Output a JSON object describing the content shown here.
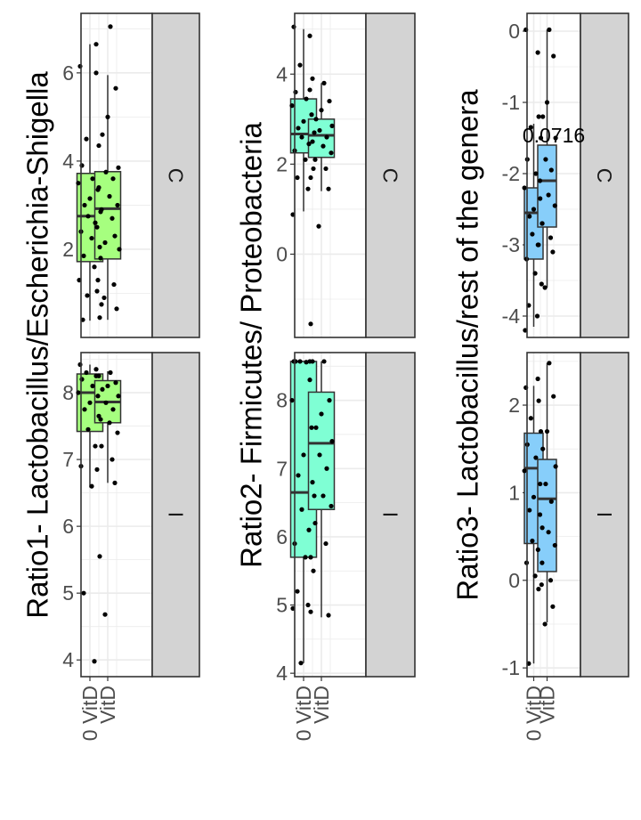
{
  "chart_data": {
    "type": "boxplot",
    "categories": [
      "0 VitD",
      "VitD"
    ],
    "facets": [
      "C",
      "I"
    ],
    "colors": {
      "panel_bg": "#ffffff",
      "grid": "#ebebeb",
      "strip": "#d3d3d3",
      "box_outline": "#333333",
      "point": "#000000"
    },
    "panels": [
      {
        "ylabel": "Ratio1- Lactobacillus/Escherichia-Shigella",
        "fill": "#a6ff7f",
        "facets": [
          {
            "facet": "C",
            "ylim": [
              0,
              7.35
            ],
            "yticks": [
              2,
              4,
              6
            ],
            "boxes": [
              {
                "q1": 1.72,
                "median": 2.75,
                "q3": 3.72,
                "lower": 0.38,
                "upper": 6.65
              },
              {
                "q1": 1.78,
                "median": 2.92,
                "q3": 3.76,
                "lower": 0.4,
                "upper": 5.95
              }
            ],
            "points": [
              [
                6.15,
                6.65,
                4.5,
                4.35,
                3.9,
                3.6,
                3.5,
                3.35,
                3.15,
                3.0,
                2.85,
                2.75,
                2.6,
                2.4,
                2.25,
                2.05,
                1.85,
                1.6,
                1.3,
                1.05,
                0.95,
                0.75,
                0.4
              ],
              [
                7.05,
                6.0,
                5.65,
                5.0,
                4.6,
                3.85,
                3.75,
                3.6,
                3.4,
                3.2,
                3.0,
                2.9,
                2.7,
                2.5,
                2.3,
                2.15,
                2.0,
                1.8,
                1.3,
                1.2,
                0.9,
                0.65,
                0.45
              ]
            ]
          },
          {
            "facet": "I",
            "ylim": [
              3.75,
              8.6
            ],
            "yticks": [
              4,
              5,
              6,
              7,
              8
            ],
            "boxes": [
              {
                "q1": 7.42,
                "median": 8.0,
                "q3": 8.28,
                "lower": 6.58,
                "upper": 8.42
              },
              {
                "q1": 7.55,
                "median": 7.86,
                "q3": 8.18,
                "lower": 6.65,
                "upper": 8.32
              }
            ],
            "points": [
              [
                8.42,
                8.35,
                8.3,
                8.25,
                8.2,
                8.1,
                8.0,
                7.95,
                7.85,
                7.75,
                7.6,
                7.45,
                7.2,
                6.9,
                6.6,
                5.55,
                5.0,
                3.98
              ],
              [
                8.3,
                8.25,
                8.15,
                8.1,
                8.05,
                7.95,
                7.85,
                7.75,
                7.65,
                7.55,
                7.4,
                7.2,
                7.0,
                6.85,
                6.65,
                4.68
              ]
            ]
          }
        ]
      },
      {
        "ylabel": "Ratio2- Firmicutes/ Proteobacteria",
        "fill": "#7fffd4",
        "facets": [
          {
            "facet": "C",
            "ylim": [
              -1.85,
              5.35
            ],
            "yticks": [
              0,
              2,
              4
            ],
            "boxes": [
              {
                "q1": 2.25,
                "median": 2.67,
                "q3": 3.45,
                "lower": 0.95,
                "upper": 5.0
              },
              {
                "q1": 2.15,
                "median": 2.64,
                "q3": 3.0,
                "lower": 1.4,
                "upper": 3.8
              }
            ],
            "points": [
              [
                5.05,
                4.85,
                4.2,
                3.9,
                3.6,
                3.45,
                3.3,
                3.1,
                2.95,
                2.8,
                2.7,
                2.6,
                2.45,
                2.3,
                2.1,
                1.9,
                1.7,
                1.45,
                0.88,
                -1.55
              ],
              [
                3.8,
                3.65,
                3.4,
                3.2,
                3.0,
                2.85,
                2.75,
                2.6,
                2.5,
                2.4,
                2.25,
                2.1,
                1.9,
                1.7,
                1.45,
                0.62
              ]
            ]
          },
          {
            "facet": "I",
            "ylim": [
              3.95,
              8.7
            ],
            "yticks": [
              4,
              5,
              6,
              7,
              8
            ],
            "boxes": [
              {
                "q1": 5.7,
                "median": 6.65,
                "q3": 8.57,
                "lower": 4.15,
                "upper": 8.57
              },
              {
                "q1": 6.4,
                "median": 7.37,
                "q3": 8.12,
                "lower": 4.82,
                "upper": 8.57
              }
            ],
            "points": [
              [
                8.57,
                8.57,
                8.57,
                8.57,
                8.57,
                8.56,
                8.0,
                7.6,
                7.2,
                6.9,
                6.6,
                6.4,
                6.1,
                5.9,
                5.7,
                5.5,
                5.2,
                5.0,
                4.95,
                4.9,
                4.15
              ],
              [
                8.57,
                8.3,
                8.0,
                7.8,
                7.6,
                7.4,
                7.2,
                7.0,
                6.8,
                6.6,
                6.45,
                6.2,
                5.9,
                5.7,
                4.85
              ]
            ]
          }
        ]
      },
      {
        "ylabel": "Ratio3- Lactobacillus/rest of the genera",
        "fill": "#87cefa",
        "annotation": "0.0716",
        "facets": [
          {
            "facet": "C",
            "ylim": [
              -4.3,
              0.25
            ],
            "yticks": [
              -4,
              -3,
              -2,
              -1,
              0
            ],
            "boxes": [
              {
                "q1": -3.2,
                "median": -2.55,
                "q3": -2.2,
                "lower": -4.15,
                "upper": -1.3
              },
              {
                "q1": -2.75,
                "median": -2.1,
                "q3": -1.6,
                "lower": -3.6,
                "upper": 0.02
              }
            ],
            "points": [
              [
                0.02,
                -1.2,
                -1.35,
                -1.5,
                -1.8,
                -2.0,
                -2.2,
                -2.35,
                -2.5,
                -2.6,
                -2.7,
                -2.85,
                -3.0,
                -3.2,
                -3.4,
                -3.55,
                -3.85,
                -4.0,
                -4.2
              ],
              [
                0.02,
                -0.3,
                -0.35,
                -1.0,
                -1.2,
                -1.5,
                -1.8,
                -1.95,
                -2.1,
                -2.3,
                -2.45,
                -2.7,
                -2.9,
                -3.0,
                -3.1,
                -3.6
              ]
            ]
          },
          {
            "facet": "I",
            "ylim": [
              -1.1,
              2.6
            ],
            "yticks": [
              -1,
              0,
              1,
              2
            ],
            "boxes": [
              {
                "q1": 0.42,
                "median": 1.28,
                "q3": 1.68,
                "lower": -0.95,
                "upper": 2.22
              },
              {
                "q1": 0.1,
                "median": 0.93,
                "q3": 1.38,
                "lower": -0.48,
                "upper": 2.48
              }
            ],
            "points": [
              [
                2.2,
                2.05,
                1.85,
                1.7,
                1.55,
                1.4,
                1.25,
                1.1,
                0.95,
                0.8,
                0.6,
                0.45,
                0.35,
                0.2,
                0.05,
                -0.05,
                -0.95
              ],
              [
                2.48,
                2.3,
                2.1,
                1.7,
                1.5,
                1.3,
                1.1,
                0.9,
                0.75,
                0.55,
                0.4,
                0.2,
                0.0,
                -0.1,
                -0.3,
                -0.5
              ]
            ]
          }
        ]
      }
    ]
  }
}
